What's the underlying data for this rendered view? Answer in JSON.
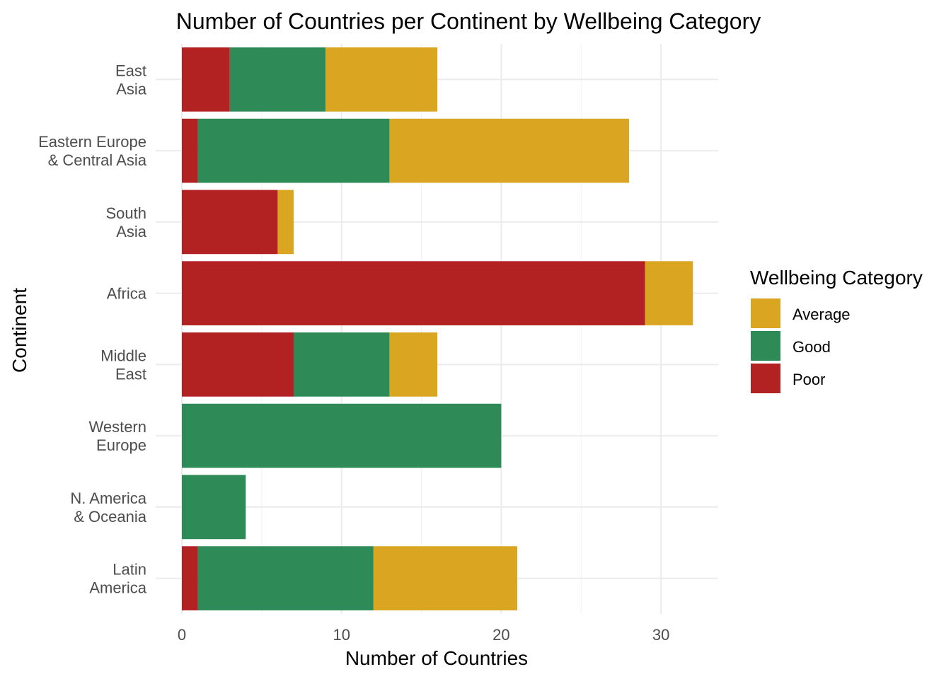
{
  "chart_data": {
    "type": "bar",
    "orientation": "horizontal",
    "stacked": true,
    "title": "Number of Countries per Continent by Wellbeing Category",
    "xlabel": "Number of Countries",
    "ylabel": "Continent",
    "xlim": [
      0,
      33.6
    ],
    "xticks": [
      0,
      10,
      20,
      30
    ],
    "grid": true,
    "categories": [
      "East\nAsia",
      "Eastern Europe\n& Central Asia",
      "South\nAsia",
      "Africa",
      "Middle\nEast",
      "Western\nEurope",
      "N. America\n& Oceania",
      "Latin\nAmerica"
    ],
    "series": [
      {
        "name": "Poor",
        "color": "#b22222",
        "values": [
          3,
          1,
          6,
          29,
          7,
          0,
          0,
          1
        ]
      },
      {
        "name": "Good",
        "color": "#2e8b57",
        "values": [
          6,
          12,
          0,
          0,
          6,
          20,
          4,
          11
        ]
      },
      {
        "name": "Average",
        "color": "#daa520",
        "values": [
          7,
          15,
          1,
          3,
          3,
          0,
          0,
          9
        ]
      }
    ],
    "stack_order": [
      "Poor",
      "Good",
      "Average"
    ],
    "legend": {
      "title": "Wellbeing Category",
      "position": "right",
      "entries": [
        "Average",
        "Good",
        "Poor"
      ]
    }
  }
}
